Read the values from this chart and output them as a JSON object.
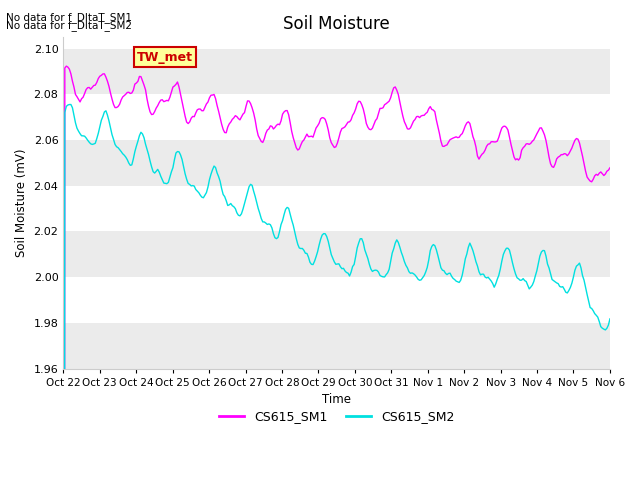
{
  "title": "Soil Moisture",
  "ylabel": "Soil Moisture (mV)",
  "xlabel": "Time",
  "no_data_text": [
    "No data for f_DltaT_SM1",
    "No data for f_DltaT_SM2"
  ],
  "tw_met_label": "TW_met",
  "legend_labels": [
    "CS615_SM1",
    "CS615_SM2"
  ],
  "line_colors": [
    "#ff00ff",
    "#00e0e0"
  ],
  "ylim": [
    1.96,
    2.105
  ],
  "yticks": [
    1.96,
    1.98,
    2.0,
    2.02,
    2.04,
    2.06,
    2.08,
    2.1
  ],
  "xtick_labels": [
    "Oct 22",
    "Oct 23",
    "Oct 24",
    "Oct 25",
    "Oct 26",
    "Oct 27",
    "Oct 28",
    "Oct 29",
    "Oct 30",
    "Oct 31",
    "Nov 1",
    "Nov 2",
    "Nov 3",
    "Nov 4",
    "Nov 5",
    "Nov 6"
  ],
  "background_color": "#ffffff",
  "plot_bg_color": "#ffffff",
  "tw_met_box_color": "#ffff99",
  "tw_met_box_edge": "#cc0000",
  "band_color_odd": "#ebebeb",
  "band_color_even": "#ffffff"
}
